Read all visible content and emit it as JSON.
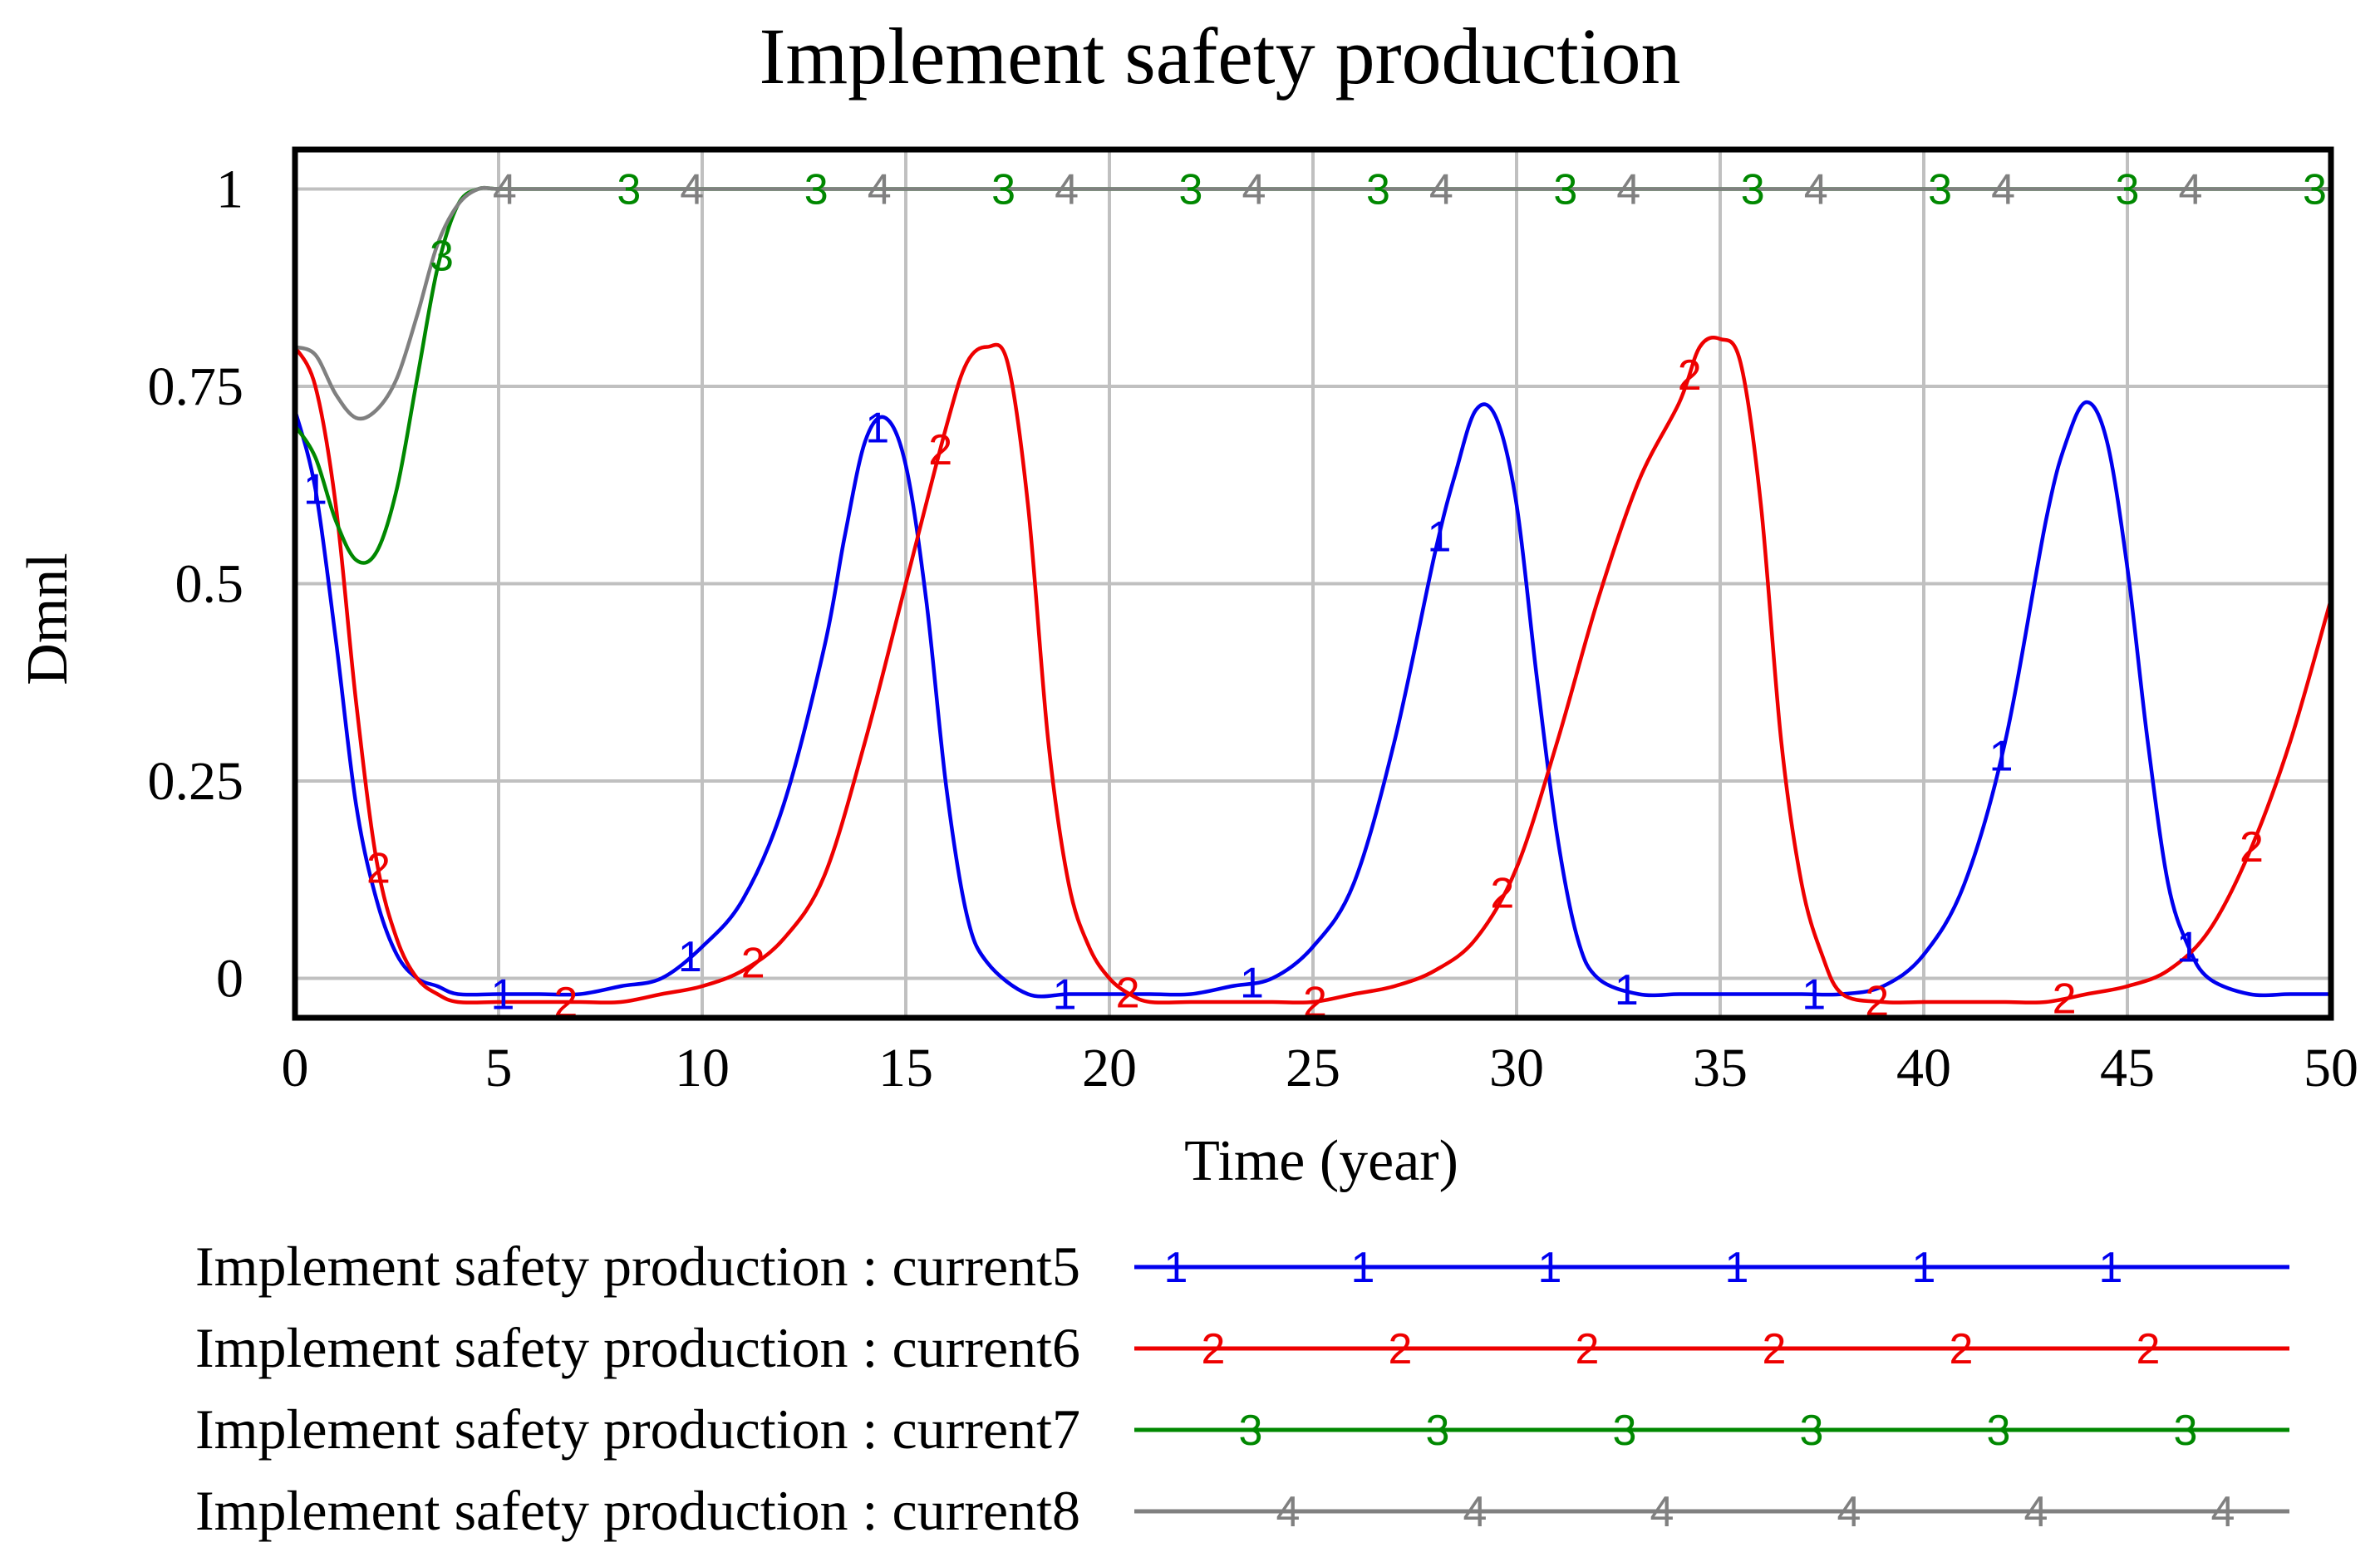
{
  "chart_data": {
    "type": "line",
    "title": "Implement safety production",
    "xlabel": "Time (year)",
    "ylabel": "Dmnl",
    "xlim": [
      0,
      50
    ],
    "ylim": [
      -0.05,
      1.05
    ],
    "x_ticks": [
      0,
      5,
      10,
      15,
      20,
      25,
      30,
      35,
      40,
      45,
      50
    ],
    "x_tick_labels": [
      "0",
      "5",
      "10",
      "15",
      "20",
      "25",
      "30",
      "35",
      "40",
      "45",
      "50"
    ],
    "y_ticks": [
      0,
      0.25,
      0.5,
      0.75,
      1
    ],
    "y_tick_labels": [
      "0",
      "0.25",
      "0.5",
      "0.75",
      "1"
    ],
    "grid": true,
    "legend_position": "bottom",
    "series": [
      {
        "name": "Implement safety production : current5",
        "marker": "1",
        "color": "#0000ee",
        "x": [
          0,
          0.5,
          1,
          1.5,
          2,
          2.5,
          3,
          3.5,
          4,
          5,
          6,
          7,
          8,
          9,
          10,
          11,
          12,
          13,
          13.5,
          14,
          14.5,
          15,
          15.5,
          16,
          16.5,
          17,
          18,
          19,
          20,
          21,
          22,
          23,
          24,
          25,
          26,
          27,
          28,
          28.5,
          29,
          29.5,
          30,
          30.5,
          31,
          31.5,
          32,
          33,
          34,
          35,
          36,
          37,
          38,
          39,
          40,
          41,
          42,
          43,
          43.5,
          44,
          44.5,
          45,
          45.5,
          46,
          46.5,
          47,
          48,
          49,
          50
        ],
        "y": [
          0.72,
          0.62,
          0.43,
          0.22,
          0.1,
          0.03,
          0.0,
          -0.01,
          -0.02,
          -0.02,
          -0.02,
          -0.02,
          -0.01,
          0.0,
          0.04,
          0.1,
          0.22,
          0.42,
          0.56,
          0.68,
          0.71,
          0.65,
          0.48,
          0.24,
          0.08,
          0.02,
          -0.02,
          -0.02,
          -0.02,
          -0.02,
          -0.02,
          -0.01,
          0.0,
          0.04,
          0.12,
          0.3,
          0.54,
          0.64,
          0.72,
          0.71,
          0.6,
          0.38,
          0.18,
          0.05,
          0.0,
          -0.02,
          -0.02,
          -0.02,
          -0.02,
          -0.02,
          -0.02,
          -0.01,
          0.03,
          0.12,
          0.3,
          0.58,
          0.68,
          0.73,
          0.68,
          0.52,
          0.3,
          0.12,
          0.04,
          0.0,
          -0.02,
          -0.02,
          -0.02
        ]
      },
      {
        "name": "Implement safety production : current6",
        "marker": "2",
        "color": "#ee0000",
        "x": [
          0,
          0.5,
          1,
          1.5,
          2,
          2.5,
          3,
          3.5,
          4,
          5,
          6,
          7,
          8,
          9,
          10,
          11,
          12,
          13,
          14,
          15,
          16,
          16.5,
          17,
          17.5,
          18,
          18.5,
          19,
          19.5,
          20,
          20.5,
          21,
          22,
          23,
          24,
          25,
          26,
          27,
          28,
          29,
          30,
          31,
          32,
          33,
          34,
          34.5,
          35,
          35.5,
          36,
          36.5,
          37,
          37.5,
          38,
          39,
          40,
          41,
          42,
          43,
          44,
          45,
          46,
          47,
          48,
          49,
          50
        ],
        "y": [
          0.8,
          0.75,
          0.6,
          0.35,
          0.15,
          0.05,
          0.0,
          -0.02,
          -0.03,
          -0.03,
          -0.03,
          -0.03,
          -0.03,
          -0.02,
          -0.01,
          0.01,
          0.05,
          0.13,
          0.3,
          0.5,
          0.7,
          0.78,
          0.8,
          0.78,
          0.6,
          0.3,
          0.12,
          0.04,
          0.0,
          -0.02,
          -0.03,
          -0.03,
          -0.03,
          -0.03,
          -0.03,
          -0.02,
          -0.01,
          0.01,
          0.05,
          0.14,
          0.3,
          0.48,
          0.63,
          0.73,
          0.8,
          0.81,
          0.78,
          0.6,
          0.3,
          0.12,
          0.03,
          -0.02,
          -0.03,
          -0.03,
          -0.03,
          -0.03,
          -0.03,
          -0.02,
          -0.01,
          0.01,
          0.06,
          0.16,
          0.3,
          0.48
        ]
      },
      {
        "name": "Implement safety production : current7",
        "marker": "3",
        "color": "#008800",
        "x": [
          0,
          0.5,
          1,
          1.5,
          2,
          2.5,
          3,
          3.5,
          4,
          4.5,
          5,
          6,
          7,
          8,
          10,
          15,
          20,
          25,
          30,
          35,
          40,
          45,
          50
        ],
        "y": [
          0.7,
          0.66,
          0.58,
          0.53,
          0.54,
          0.62,
          0.76,
          0.9,
          0.98,
          1.0,
          1.0,
          1.0,
          1.0,
          1.0,
          1.0,
          1.0,
          1.0,
          1.0,
          1.0,
          1.0,
          1.0,
          1.0,
          1.0
        ]
      },
      {
        "name": "Implement safety production : current8",
        "marker": "4",
        "color": "#808080",
        "x": [
          0,
          0.5,
          1,
          1.5,
          2,
          2.5,
          3,
          3.5,
          4,
          4.5,
          5,
          6,
          7,
          8,
          10,
          15,
          20,
          25,
          30,
          35,
          40,
          45,
          50
        ],
        "y": [
          0.8,
          0.79,
          0.74,
          0.71,
          0.72,
          0.76,
          0.84,
          0.93,
          0.98,
          1.0,
          1.0,
          1.0,
          1.0,
          1.0,
          1.0,
          1.0,
          1.0,
          1.0,
          1.0,
          1.0,
          1.0,
          1.0,
          1.0
        ]
      }
    ]
  }
}
